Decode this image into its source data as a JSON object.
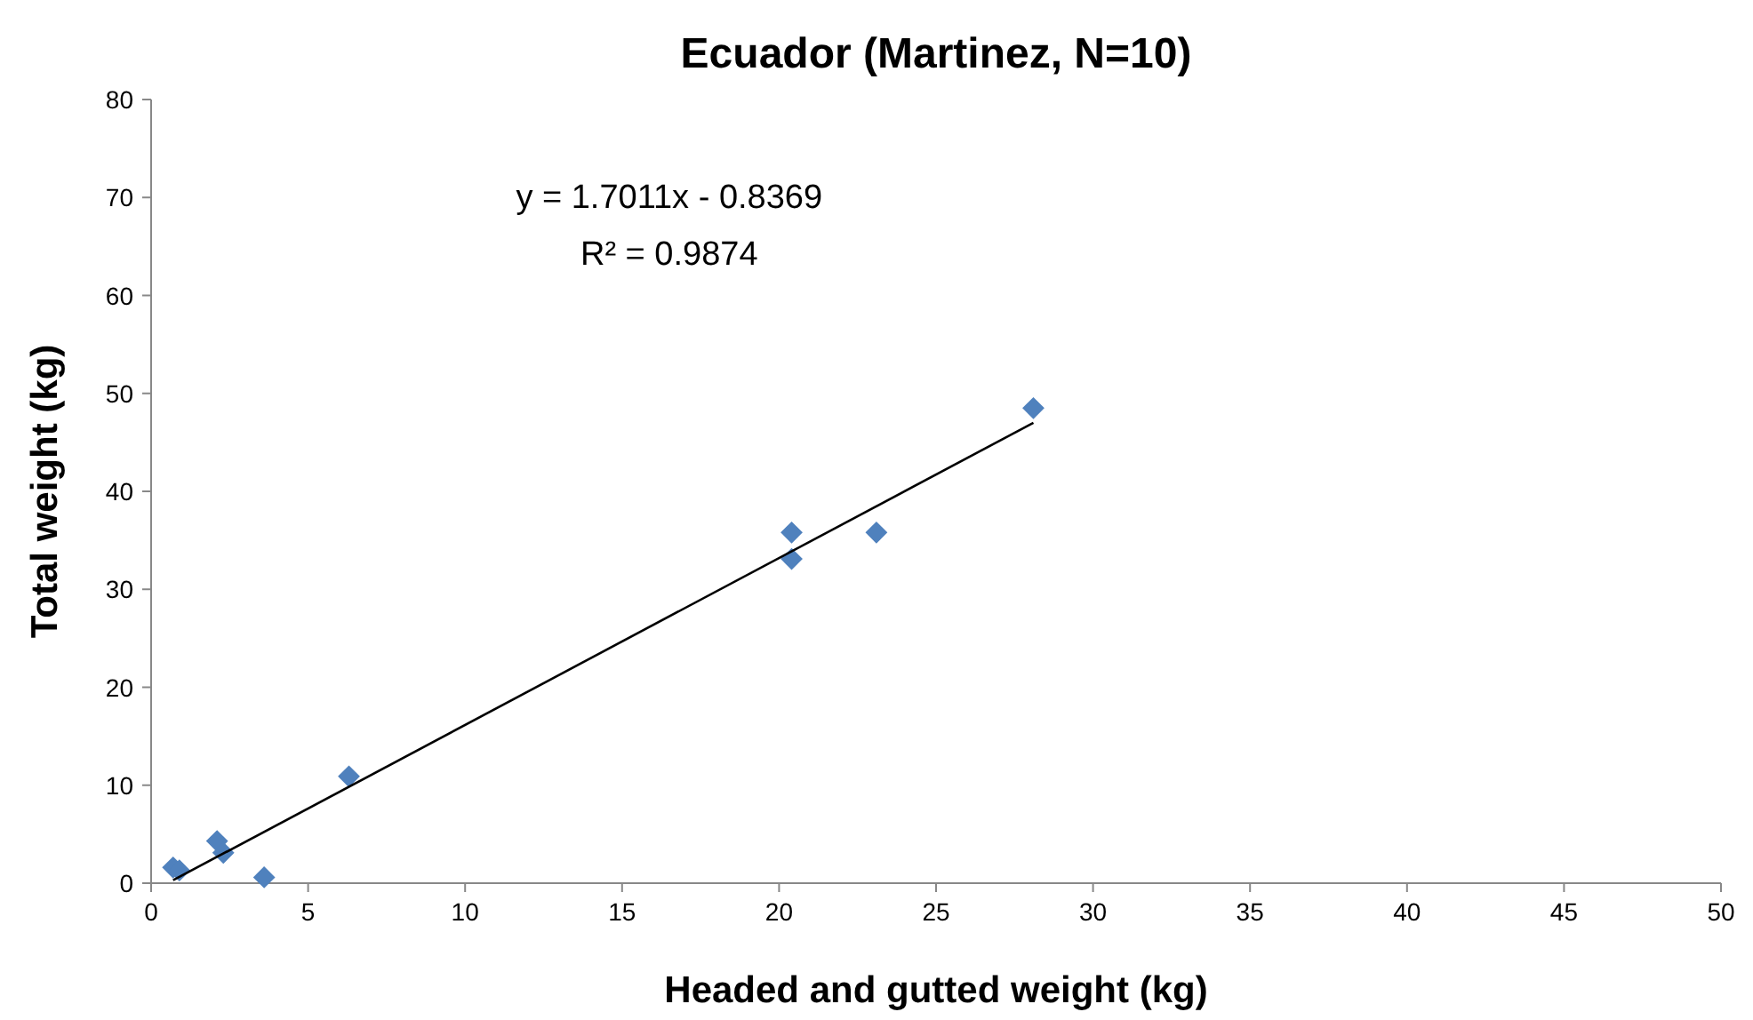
{
  "chart_data": {
    "type": "scatter",
    "title": "Ecuador (Martinez, N=10)",
    "xlabel": "Headed and gutted weight (kg)",
    "ylabel": "Total weight (kg)",
    "annotations": [
      "y = 1.7011x - 0.8369",
      "R² = 0.9874"
    ],
    "xlim": [
      0,
      50
    ],
    "xticks": [
      0,
      5,
      10,
      15,
      20,
      25,
      30,
      35,
      40,
      45,
      50
    ],
    "ylim": [
      0,
      80
    ],
    "yticks": [
      0,
      10,
      20,
      30,
      40,
      50,
      60,
      70,
      80
    ],
    "grid": false,
    "marker": "diamond",
    "series": [
      {
        "color": "#4f81bd",
        "x": [
          0.7,
          0.9,
          2.1,
          2.3,
          3.6,
          6.3,
          20.4,
          20.4,
          23.1,
          28.1
        ],
        "values": [
          1.6,
          1.3,
          4.3,
          3.1,
          0.6,
          10.9,
          35.8,
          33.1,
          35.8,
          48.5
        ]
      },
      {
        "type": "line",
        "color": "#000000",
        "x": [
          0.7,
          28.1
        ],
        "values": [
          0.3,
          47.0
        ],
        "marker": "none"
      }
    ]
  }
}
